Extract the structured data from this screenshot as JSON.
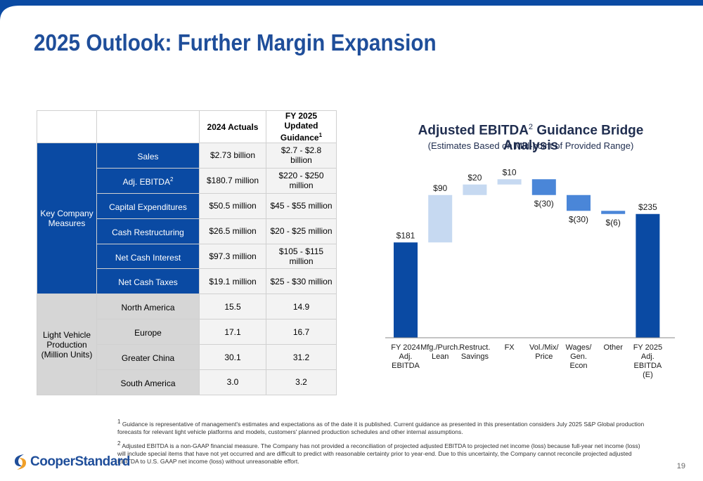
{
  "slide": {
    "title": "2025 Outlook: Further Margin Expansion",
    "page_number": "19",
    "colors": {
      "brand_blue": "#1f4e9a",
      "dark_blue": "#0a4aa3",
      "light_blue": "#c6d9f1",
      "mid_blue": "#4a86d8",
      "gray": "#d6d6d6"
    }
  },
  "table": {
    "header_actuals": "2024 Actuals",
    "header_guidance": "FY 2025 Updated Guidance",
    "header_guidance_sup": "1",
    "group1_label": "Key Company Measures",
    "group2_label": "Light Vehicle Production (Million Units)",
    "rows": [
      {
        "label": "Sales",
        "sup": "",
        "actual": "$2.73 billion",
        "guidance": "$2.7 - $2.8 billion"
      },
      {
        "label": "Adj. EBITDA",
        "sup": "2",
        "actual": "$180.7 million",
        "guidance": "$220 - $250 million"
      },
      {
        "label": "Capital Expenditures",
        "sup": "",
        "actual": "$50.5 million",
        "guidance": "$45 - $55 million"
      },
      {
        "label": "Cash Restructuring",
        "sup": "",
        "actual": "$26.5 million",
        "guidance": "$20 - $25 million"
      },
      {
        "label": "Net Cash Interest",
        "sup": "",
        "actual": "$97.3 million",
        "guidance": "$105 - $115 million"
      },
      {
        "label": "Net Cash Taxes",
        "sup": "",
        "actual": "$19.1 million",
        "guidance": "$25 - $30 million"
      },
      {
        "label": "North America",
        "sup": "",
        "actual": "15.5",
        "guidance": "14.9"
      },
      {
        "label": "Europe",
        "sup": "",
        "actual": "17.1",
        "guidance": "16.7"
      },
      {
        "label": "Greater China",
        "sup": "",
        "actual": "30.1",
        "guidance": "31.2"
      },
      {
        "label": "South America",
        "sup": "",
        "actual": "3.0",
        "guidance": "3.2"
      }
    ]
  },
  "chart_data": {
    "type": "bar",
    "subtype": "waterfall",
    "title": "Adjusted EBITDA",
    "title_sup": "2",
    "title_rest": " Guidance Bridge Analysis",
    "subtitle": "(Estimates Based on Mid-point of Provided Range)",
    "categories": [
      "FY 2024 Adj. EBITDA",
      "Mfg./Purch. Lean",
      "Restruct. Savings",
      "FX",
      "Vol./Mix/ Price",
      "Wages/ Gen. Econ",
      "Other",
      "FY 2025 Adj. EBITDA (E)"
    ],
    "category_lines": [
      [
        "FY 2024",
        "Adj.",
        "EBITDA"
      ],
      [
        "Mfg./Purch.",
        "Lean"
      ],
      [
        "Restruct.",
        "Savings"
      ],
      [
        "FX"
      ],
      [
        "Vol./Mix/",
        "Price"
      ],
      [
        "Wages/",
        "Gen.",
        "Econ"
      ],
      [
        "Other"
      ],
      [
        "FY 2025",
        "Adj.",
        "EBITDA",
        "(E)"
      ]
    ],
    "values": [
      181,
      90,
      20,
      10,
      -30,
      -30,
      -6,
      235
    ],
    "bar_kinds": [
      "total",
      "increase",
      "increase",
      "increase",
      "decrease",
      "decrease",
      "decrease",
      "total"
    ],
    "data_labels": [
      "$181",
      "$90",
      "$20",
      "$10",
      "$(30)",
      "$(30)",
      "$(6)",
      "$235"
    ],
    "colors": {
      "total": "#0a4aa3",
      "increase": "#c6d9f1",
      "decrease": "#4a86d8"
    },
    "ylim": [
      0,
      320
    ],
    "grid": false,
    "legend": "none"
  },
  "footnotes": {
    "note1_sup": "1",
    "note1": " Guidance is representative of management's estimates and expectations as of the date it is published. Current guidance as presented in this presentation considers July 2025 S&P Global production forecasts for relevant light vehicle platforms and models, customers' planned production schedules and other internal assumptions.",
    "note2_sup": "2",
    "note2": " Adjusted EBITDA is a non-GAAP financial measure. The Company has not provided a reconciliation of projected adjusted EBITDA to projected net income (loss) because full-year net income (loss) will include special items that have not yet occurred and are difficult to predict with reasonable certainty prior to year-end. Due to this uncertainty, the Company cannot reconcile projected adjusted EBITDA to U.S. GAAP net income (loss) without unreasonable effort."
  },
  "logo": {
    "text": "CooperStandard",
    "icon": "cooper-standard-swoosh-icon"
  }
}
